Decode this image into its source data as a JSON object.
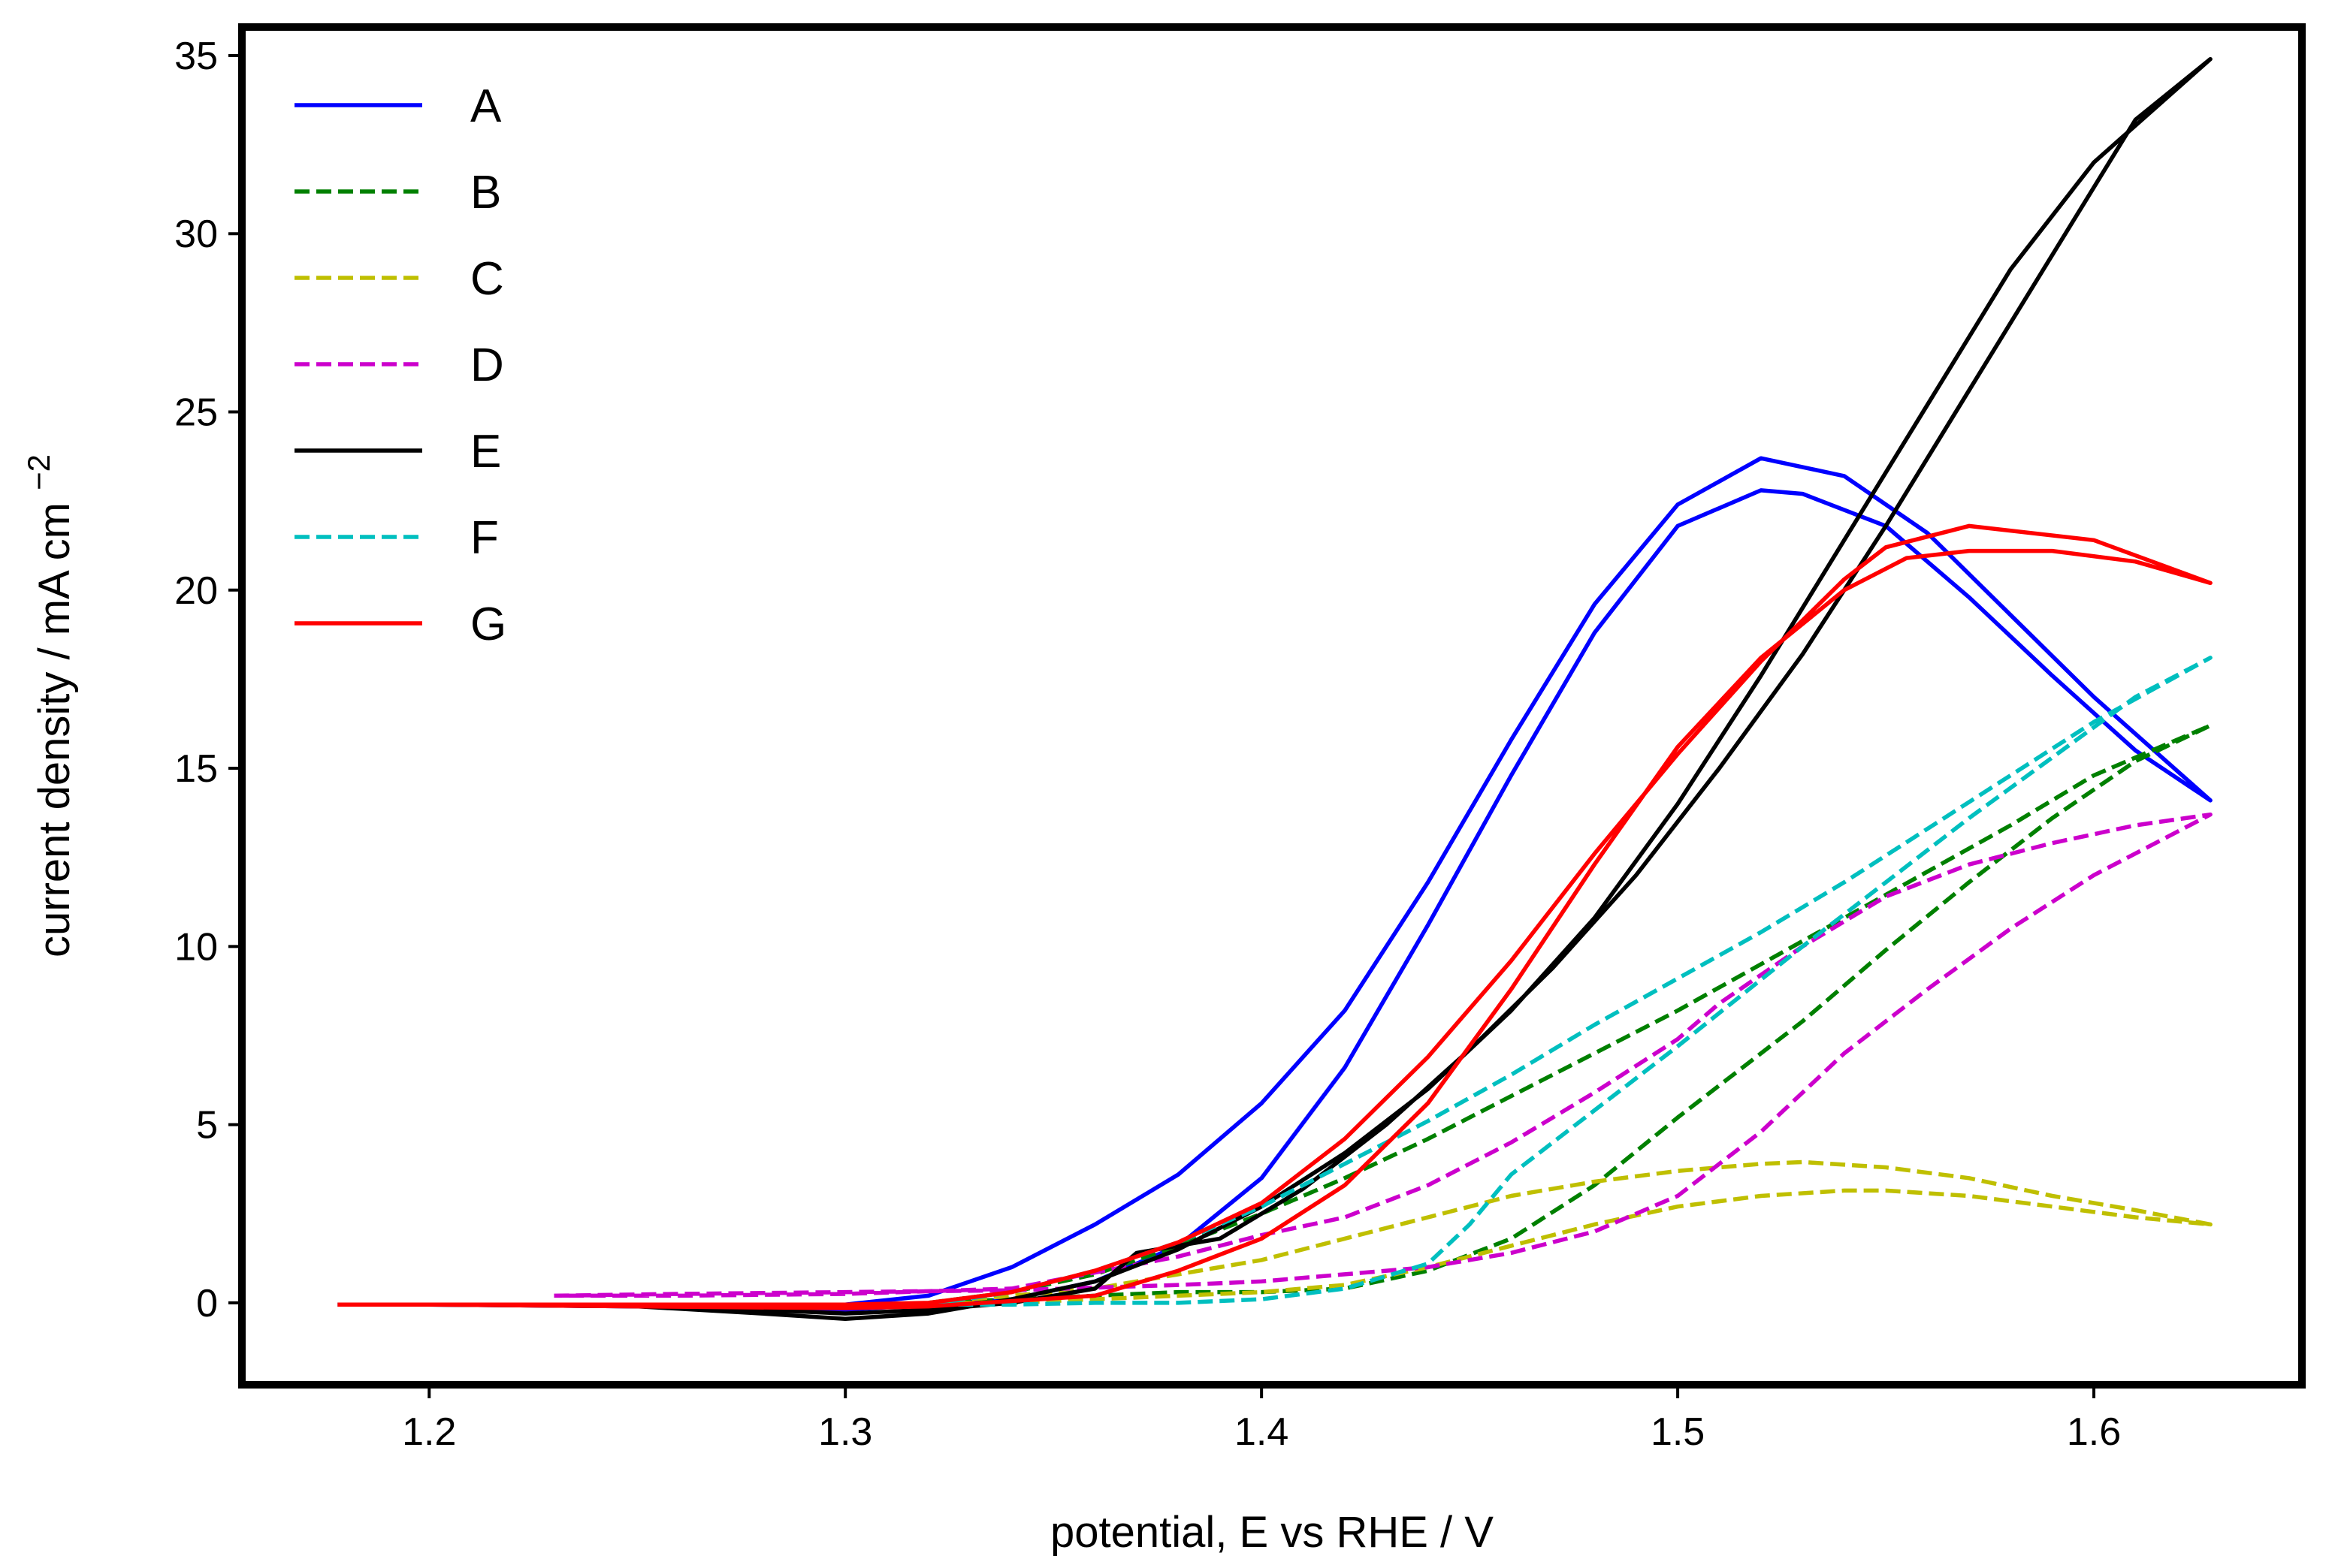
{
  "chart_data": {
    "type": "line",
    "title": "",
    "xlabel": "potential, E vs RHE / V",
    "ylabel": "current density / mA cm",
    "ylabel_unit_exponent": "−2",
    "xlim": [
      1.155,
      1.65
    ],
    "ylim": [
      -2.3,
      35.8
    ],
    "xticks": [
      1.2,
      1.3,
      1.4,
      1.5,
      1.6
    ],
    "xtick_labels": [
      "1.2",
      "1.3",
      "1.4",
      "1.5",
      "1.6"
    ],
    "yticks": [
      0,
      5,
      10,
      15,
      20,
      25,
      30,
      35
    ],
    "ytick_labels": [
      "0",
      "5",
      "10",
      "15",
      "20",
      "25",
      "30",
      "35"
    ],
    "grid": false,
    "legend_position": "top-left",
    "series": [
      {
        "name": "A",
        "color": "#0000ff",
        "dash": "solid",
        "x": [
          1.178,
          1.2,
          1.25,
          1.3,
          1.32,
          1.34,
          1.36,
          1.38,
          1.4,
          1.42,
          1.44,
          1.46,
          1.48,
          1.5,
          1.52,
          1.54,
          1.56,
          1.58,
          1.6,
          1.628,
          1.61,
          1.59,
          1.57,
          1.55,
          1.53,
          1.52,
          1.5,
          1.48,
          1.46,
          1.44,
          1.42,
          1.4,
          1.38,
          1.36,
          1.34,
          1.32,
          1.3,
          1.25,
          1.2,
          1.178
        ],
        "y": [
          -0.05,
          -0.05,
          -0.05,
          -0.05,
          0.2,
          1.0,
          2.2,
          3.6,
          5.6,
          8.2,
          11.8,
          15.8,
          19.6,
          22.4,
          23.7,
          23.2,
          21.6,
          19.3,
          17.0,
          14.1,
          15.5,
          17.6,
          19.8,
          21.8,
          22.7,
          22.8,
          21.8,
          18.8,
          14.8,
          10.6,
          6.6,
          3.5,
          1.6,
          0.6,
          0.1,
          -0.05,
          -0.2,
          -0.1,
          -0.05,
          -0.05
        ]
      },
      {
        "name": "B",
        "color": "#008000",
        "dash": "dashed",
        "x": [
          1.32,
          1.34,
          1.36,
          1.38,
          1.4,
          1.42,
          1.44,
          1.46,
          1.48,
          1.5,
          1.52,
          1.54,
          1.56,
          1.58,
          1.6,
          1.628,
          1.61,
          1.59,
          1.57,
          1.55,
          1.53,
          1.5,
          1.48,
          1.46,
          1.44,
          1.42,
          1.4,
          1.38,
          1.36,
          1.34,
          1.32
        ],
        "y": [
          0.0,
          0.3,
          0.8,
          1.6,
          2.5,
          3.5,
          4.6,
          5.8,
          7.0,
          8.2,
          9.5,
          10.8,
          12.1,
          13.4,
          14.8,
          16.2,
          15.2,
          13.6,
          11.8,
          9.9,
          7.9,
          5.2,
          3.3,
          1.8,
          0.9,
          0.4,
          0.3,
          0.3,
          0.2,
          0.1,
          0.0
        ]
      },
      {
        "name": "C",
        "color": "#bfbf00",
        "dash": "dashed",
        "x": [
          1.32,
          1.34,
          1.36,
          1.38,
          1.4,
          1.42,
          1.44,
          1.46,
          1.48,
          1.5,
          1.52,
          1.53,
          1.55,
          1.57,
          1.59,
          1.61,
          1.628,
          1.61,
          1.59,
          1.57,
          1.55,
          1.54,
          1.52,
          1.5,
          1.48,
          1.46,
          1.44,
          1.42,
          1.4,
          1.38,
          1.36,
          1.34,
          1.32
        ],
        "y": [
          0.0,
          0.2,
          0.4,
          0.8,
          1.2,
          1.8,
          2.4,
          3.0,
          3.4,
          3.7,
          3.9,
          3.95,
          3.8,
          3.5,
          3.0,
          2.6,
          2.2,
          2.4,
          2.7,
          3.0,
          3.15,
          3.15,
          3.0,
          2.7,
          2.2,
          1.6,
          1.0,
          0.5,
          0.3,
          0.2,
          0.1,
          0.0,
          0.0
        ]
      },
      {
        "name": "D",
        "color": "#cc00cc",
        "dash": "dashed",
        "x": [
          1.23,
          1.26,
          1.3,
          1.34,
          1.38,
          1.4,
          1.42,
          1.44,
          1.46,
          1.48,
          1.5,
          1.52,
          1.54,
          1.56,
          1.58,
          1.6,
          1.628,
          1.61,
          1.59,
          1.57,
          1.55,
          1.53,
          1.51,
          1.5,
          1.48,
          1.46,
          1.44,
          1.42,
          1.4,
          1.38,
          1.34,
          1.3,
          1.26,
          1.23
        ],
        "y": [
          0.2,
          0.25,
          0.3,
          0.35,
          0.5,
          0.6,
          0.8,
          1.0,
          1.4,
          2.0,
          3.0,
          4.8,
          7.0,
          8.8,
          10.5,
          12.0,
          13.7,
          13.4,
          12.9,
          12.3,
          11.4,
          10.0,
          8.4,
          7.4,
          5.9,
          4.5,
          3.3,
          2.4,
          1.9,
          1.3,
          0.4,
          0.25,
          0.2,
          0.2
        ]
      },
      {
        "name": "E",
        "color": "#000000",
        "dash": "solid",
        "x": [
          1.178,
          1.2,
          1.25,
          1.28,
          1.3,
          1.32,
          1.34,
          1.36,
          1.38,
          1.4,
          1.42,
          1.44,
          1.46,
          1.48,
          1.5,
          1.52,
          1.54,
          1.56,
          1.58,
          1.6,
          1.628,
          1.61,
          1.59,
          1.57,
          1.55,
          1.53,
          1.51,
          1.49,
          1.47,
          1.45,
          1.43,
          1.41,
          1.39,
          1.37,
          1.36,
          1.34,
          1.32,
          1.3,
          1.28,
          1.25,
          1.2,
          1.178
        ],
        "y": [
          -0.05,
          -0.05,
          -0.1,
          -0.3,
          -0.45,
          -0.3,
          0.1,
          0.6,
          1.5,
          2.7,
          4.2,
          6.0,
          8.2,
          10.8,
          14.0,
          17.6,
          21.4,
          25.2,
          29.0,
          32.0,
          34.9,
          33.2,
          29.4,
          25.6,
          21.8,
          18.2,
          15.0,
          12.0,
          9.4,
          7.1,
          5.0,
          3.2,
          1.8,
          1.4,
          0.4,
          0.0,
          -0.2,
          -0.3,
          -0.2,
          -0.1,
          -0.05,
          -0.05
        ]
      },
      {
        "name": "F",
        "color": "#00bfbf",
        "dash": "dashed",
        "x": [
          1.32,
          1.34,
          1.36,
          1.38,
          1.4,
          1.42,
          1.44,
          1.46,
          1.48,
          1.5,
          1.52,
          1.54,
          1.56,
          1.58,
          1.6,
          1.628,
          1.61,
          1.59,
          1.57,
          1.55,
          1.53,
          1.5,
          1.48,
          1.46,
          1.45,
          1.44,
          1.42,
          1.4,
          1.38,
          1.36,
          1.34,
          1.32
        ],
        "y": [
          -0.05,
          0.3,
          0.9,
          1.7,
          2.7,
          3.9,
          5.1,
          6.4,
          7.8,
          9.1,
          10.4,
          11.8,
          13.3,
          14.8,
          16.3,
          18.1,
          17.0,
          15.3,
          13.6,
          11.8,
          10.0,
          7.2,
          5.4,
          3.6,
          2.2,
          1.1,
          0.4,
          0.1,
          0.0,
          0.0,
          -0.05,
          -0.05
        ]
      },
      {
        "name": "G",
        "color": "#ff0000",
        "dash": "solid",
        "x": [
          1.178,
          1.2,
          1.25,
          1.3,
          1.32,
          1.34,
          1.36,
          1.38,
          1.4,
          1.42,
          1.44,
          1.46,
          1.48,
          1.5,
          1.52,
          1.54,
          1.55,
          1.57,
          1.6,
          1.628,
          1.61,
          1.59,
          1.57,
          1.555,
          1.54,
          1.52,
          1.5,
          1.48,
          1.46,
          1.44,
          1.42,
          1.4,
          1.38,
          1.36,
          1.34,
          1.32,
          1.3,
          1.25,
          1.2,
          1.178
        ],
        "y": [
          -0.05,
          -0.05,
          -0.05,
          -0.05,
          0.0,
          0.3,
          0.9,
          1.7,
          2.8,
          4.6,
          6.9,
          9.6,
          12.6,
          15.4,
          18.0,
          20.3,
          21.2,
          21.8,
          21.4,
          20.2,
          20.8,
          21.1,
          21.1,
          20.9,
          20.0,
          18.1,
          15.6,
          12.3,
          8.8,
          5.6,
          3.3,
          1.8,
          0.9,
          0.2,
          0.05,
          -0.1,
          -0.15,
          -0.1,
          -0.05,
          -0.05
        ]
      }
    ]
  }
}
